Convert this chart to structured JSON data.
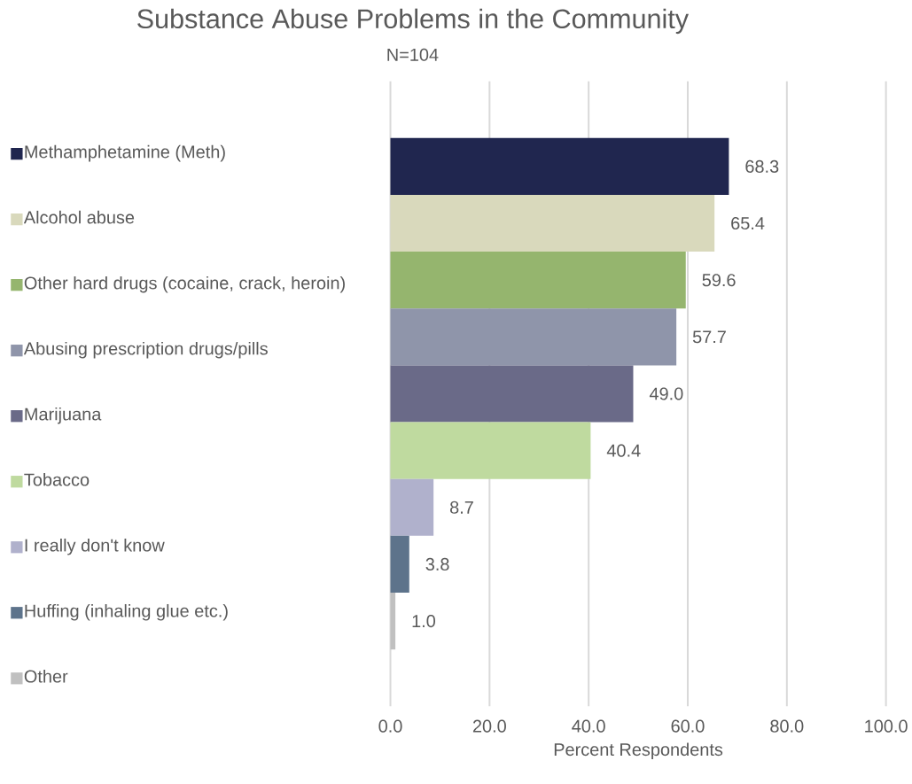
{
  "chart_data": {
    "type": "bar",
    "orientation": "horizontal",
    "title": "Substance Abuse Problems in the Community",
    "subtitle": "N=104",
    "xlabel": "Percent Respondents",
    "categories": [
      null
    ],
    "series": [
      {
        "name": "Methamphetamine (Meth)",
        "color": "#20264f",
        "values": [
          68.3
        ],
        "value_labels": [
          "68.3"
        ]
      },
      {
        "name": "Alcohol abuse",
        "color": "#d9d9bc",
        "values": [
          65.4
        ],
        "value_labels": [
          "65.4"
        ]
      },
      {
        "name": "Other hard drugs (cocaine, crack, heroin)",
        "color": "#95b56e",
        "values": [
          59.6
        ],
        "value_labels": [
          "59.6"
        ]
      },
      {
        "name": "Abusing prescription drugs/pills",
        "color": "#8f95aa",
        "values": [
          57.7
        ],
        "value_labels": [
          "57.7"
        ]
      },
      {
        "name": "Marijuana",
        "color": "#6a6a88",
        "values": [
          49.0
        ],
        "value_labels": [
          "49.0"
        ]
      },
      {
        "name": "Tobacco",
        "color": "#bfda9f",
        "values": [
          40.4
        ],
        "value_labels": [
          "40.4"
        ]
      },
      {
        "name": "I really don't know",
        "color": "#b0b1cc",
        "values": [
          8.7
        ],
        "value_labels": [
          "8.7"
        ]
      },
      {
        "name": "Huffing (inhaling glue etc.)",
        "color": "#5d738b",
        "values": [
          3.8
        ],
        "value_labels": [
          "3.8"
        ]
      },
      {
        "name": "Other",
        "color": "#c0c0c0",
        "values": [
          1.0
        ],
        "value_labels": [
          "1.0"
        ]
      }
    ],
    "xlim": [
      0,
      100
    ],
    "xticks": [
      {
        "value": 0,
        "label": "0.0"
      },
      {
        "value": 20,
        "label": "20.0"
      },
      {
        "value": 40,
        "label": "40.0"
      },
      {
        "value": 60,
        "label": "60.0"
      },
      {
        "value": 80,
        "label": "80.0"
      },
      {
        "value": 100,
        "label": "100.0"
      }
    ],
    "grid": "x",
    "legend": "left"
  }
}
